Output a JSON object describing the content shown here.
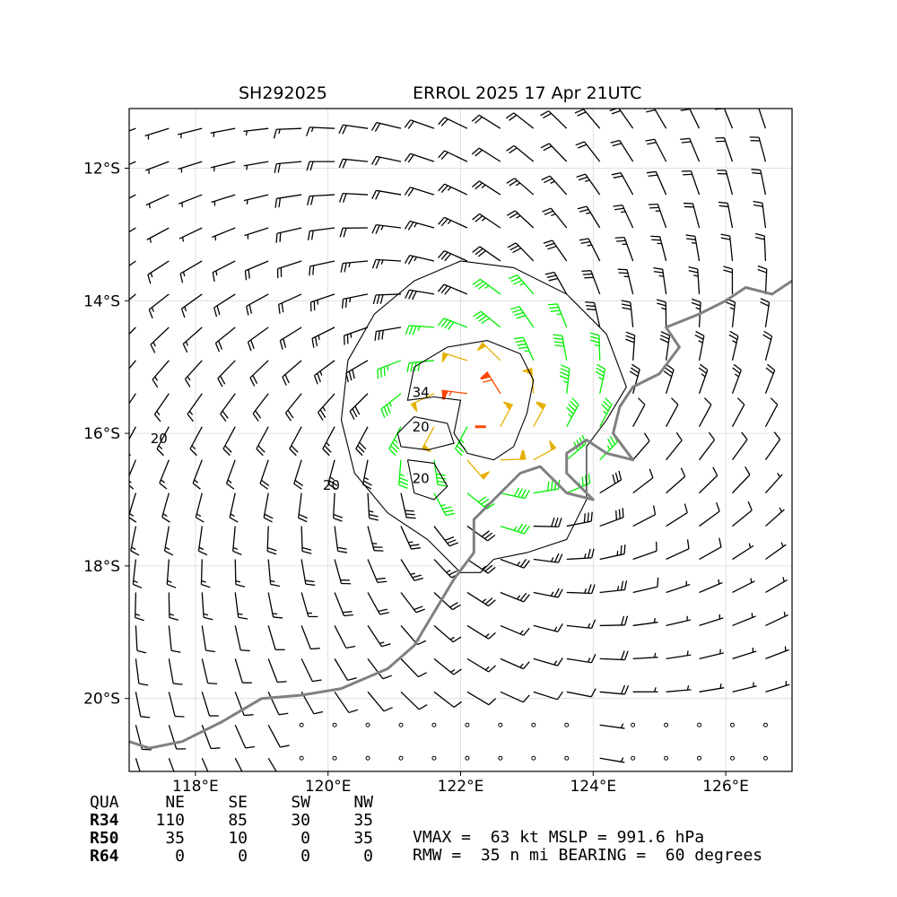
{
  "header": {
    "storm_id": "SH292025",
    "storm_title": "ERROL 2025 17 Apr 21UTC"
  },
  "chart_data": {
    "type": "wind-barb-map",
    "xlim": [
      117,
      127
    ],
    "ylim": [
      -21.1,
      -11.1
    ],
    "x_ticks": [
      {
        "value": 118,
        "label": "118°E"
      },
      {
        "value": 120,
        "label": "120°E"
      },
      {
        "value": 122,
        "label": "122°E"
      },
      {
        "value": 124,
        "label": "124°E"
      },
      {
        "value": 126,
        "label": "126°E"
      }
    ],
    "y_ticks": [
      {
        "value": -12,
        "label": "12°S"
      },
      {
        "value": -14,
        "label": "14°S"
      },
      {
        "value": -16,
        "label": "16°S"
      },
      {
        "value": -18,
        "label": "18°S"
      },
      {
        "value": -20,
        "label": "20°S"
      }
    ],
    "grid": true,
    "center": {
      "lon": 122.3,
      "lat": -15.9
    },
    "vmax_kt": 63,
    "colors": {
      "calm_below_34": "#000000",
      "gale_34_to_49": "#00ee00",
      "storm_50_to_63": "#e5b000",
      "hurricane_64_plus": "#ff4500",
      "coastline": "#808080",
      "contour": "#000000"
    },
    "contour_labels": [
      {
        "text": "34",
        "lon": 121.4,
        "lat": -15.45
      },
      {
        "text": "20",
        "lon": 121.4,
        "lat": -15.97
      },
      {
        "text": "20",
        "lon": 121.4,
        "lat": -16.75
      },
      {
        "text": "20",
        "lon": 117.45,
        "lat": -16.15
      },
      {
        "text": "20",
        "lon": 120.05,
        "lat": -16.85
      }
    ],
    "contour_34kt": [
      [
        120.3,
        -14.9
      ],
      [
        120.7,
        -14.2
      ],
      [
        121.3,
        -13.7
      ],
      [
        122.0,
        -13.4
      ],
      [
        122.8,
        -13.5
      ],
      [
        123.6,
        -13.9
      ],
      [
        124.2,
        -14.5
      ],
      [
        124.5,
        -15.3
      ],
      [
        124.2,
        -15.8
      ],
      [
        123.9,
        -16.2
      ],
      [
        123.9,
        -17.0
      ],
      [
        123.6,
        -17.6
      ],
      [
        123.0,
        -17.8
      ],
      [
        122.5,
        -17.9
      ],
      [
        122.3,
        -18.1
      ],
      [
        122.0,
        -18.1
      ],
      [
        121.5,
        -17.6
      ],
      [
        120.9,
        -17.2
      ],
      [
        120.4,
        -16.6
      ],
      [
        120.2,
        -15.8
      ],
      [
        120.3,
        -14.9
      ]
    ],
    "contour_inner_20": [
      [
        121.3,
        -15.0
      ],
      [
        121.8,
        -14.7
      ],
      [
        122.4,
        -14.6
      ],
      [
        122.9,
        -14.8
      ],
      [
        123.1,
        -15.2
      ],
      [
        123.0,
        -15.7
      ],
      [
        122.8,
        -16.2
      ],
      [
        122.5,
        -16.4
      ],
      [
        122.1,
        -16.3
      ],
      [
        121.9,
        -16.0
      ],
      [
        122.0,
        -15.5
      ],
      [
        121.6,
        -15.45
      ],
      [
        121.2,
        -15.5
      ],
      [
        121.3,
        -15.0
      ]
    ],
    "contour_small_20": [
      [
        121.05,
        -16.0
      ],
      [
        121.3,
        -15.75
      ],
      [
        121.8,
        -15.85
      ],
      [
        121.9,
        -16.15
      ],
      [
        121.5,
        -16.25
      ],
      [
        121.1,
        -16.2
      ],
      [
        121.05,
        -16.0
      ]
    ],
    "contour_lower_20": [
      [
        121.2,
        -16.4
      ],
      [
        121.6,
        -16.45
      ],
      [
        121.8,
        -16.8
      ],
      [
        121.6,
        -17.0
      ],
      [
        121.3,
        -16.9
      ],
      [
        121.2,
        -16.4
      ]
    ],
    "coastline_main": [
      [
        117.0,
        -20.65
      ],
      [
        117.3,
        -20.75
      ],
      [
        117.8,
        -20.65
      ],
      [
        118.4,
        -20.35
      ],
      [
        119.0,
        -20.0
      ],
      [
        119.6,
        -19.95
      ],
      [
        120.2,
        -19.85
      ],
      [
        120.9,
        -19.55
      ],
      [
        121.3,
        -19.2
      ],
      [
        121.6,
        -18.7
      ],
      [
        121.9,
        -18.2
      ],
      [
        122.2,
        -17.8
      ],
      [
        122.2,
        -17.3
      ],
      [
        122.5,
        -17.0
      ],
      [
        122.9,
        -16.6
      ],
      [
        123.2,
        -16.5
      ],
      [
        123.6,
        -16.9
      ],
      [
        124.0,
        -17.0
      ],
      [
        123.6,
        -16.6
      ],
      [
        123.6,
        -16.3
      ],
      [
        123.9,
        -16.1
      ],
      [
        124.2,
        -16.3
      ],
      [
        124.6,
        -16.4
      ],
      [
        124.3,
        -16.0
      ],
      [
        124.4,
        -15.6
      ],
      [
        124.6,
        -15.3
      ],
      [
        125.0,
        -15.1
      ],
      [
        125.3,
        -14.7
      ],
      [
        125.1,
        -14.4
      ],
      [
        125.6,
        -14.2
      ],
      [
        126.0,
        -14.0
      ],
      [
        126.3,
        -13.8
      ],
      [
        126.7,
        -13.9
      ],
      [
        127.0,
        -13.7
      ]
    ],
    "legend_table": {
      "header": [
        "QUA",
        "NE",
        "SE",
        "SW",
        "NW"
      ],
      "rows": [
        {
          "label": "R34",
          "values": [
            "110",
            "85",
            "30",
            "35"
          ]
        },
        {
          "label": "R50",
          "values": [
            "35",
            "10",
            "0",
            "35"
          ]
        },
        {
          "label": "R64",
          "values": [
            "0",
            "0",
            "0",
            "0"
          ]
        }
      ]
    },
    "summary_line1": "VMAX =  63 kt MSLP = 991.6 hPa",
    "summary_line2": "RMW =  35 n mi BEARING =  60 degrees"
  }
}
